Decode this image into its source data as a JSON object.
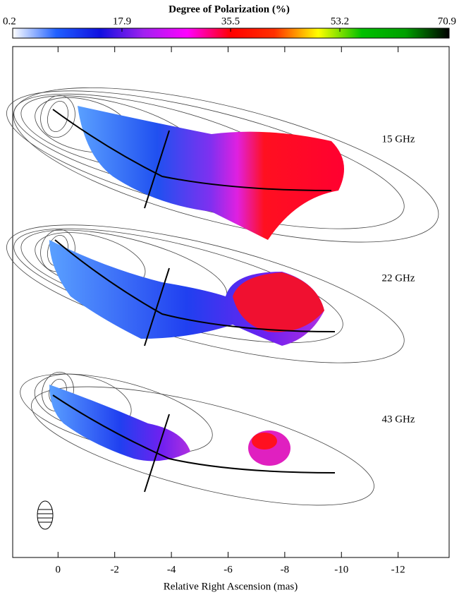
{
  "chart_data": {
    "type": "polarization-map",
    "colorbar": {
      "title": "Degree of Polarization (%)",
      "lim": [
        0.2,
        70.9
      ],
      "ticks": [
        0.2,
        17.9,
        35.5,
        53.2,
        70.9
      ],
      "colors": [
        "#ffffff",
        "#2060ff",
        "#1010e0",
        "#a020f0",
        "#ff00ff",
        "#ff0000",
        "#ff3000",
        "#ffff00",
        "#00c000",
        "#00a000",
        "#000000"
      ]
    },
    "x_label": "Relative Right Ascension (mas)",
    "xlim": [
      1.6,
      -13.8
    ],
    "xticks": [
      0,
      -2,
      -4,
      -6,
      -8,
      -10,
      -12
    ],
    "panels": [
      {
        "label": "15 GHz"
      },
      {
        "label": "22 GHz"
      },
      {
        "label": "43 GHz"
      }
    ]
  }
}
